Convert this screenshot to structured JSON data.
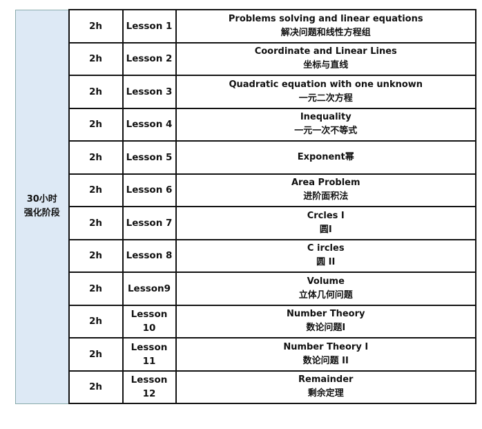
{
  "stage": {
    "line1": "30小时",
    "line2": "强化阶段",
    "color": "#dde9f5"
  },
  "rows": [
    {
      "hours": "2h",
      "lesson": "Lesson 1",
      "en": "Problems solving and linear equations",
      "zh": "解决问题和线性方程组"
    },
    {
      "hours": "2h",
      "lesson": "Lesson 2",
      "en": "Coordinate and Linear Lines",
      "zh": "坐标与直线"
    },
    {
      "hours": "2h",
      "lesson": "Lesson 3",
      "en": "Quadratic equation with one unknown",
      "zh": "一元二次方程"
    },
    {
      "hours": "2h",
      "lesson": "Lesson 4",
      "en": "Inequality",
      "zh": "一元一次不等式"
    },
    {
      "hours": "2h",
      "lesson": "Lesson 5",
      "en": "Exponent幂",
      "zh": ""
    },
    {
      "hours": "2h",
      "lesson": "Lesson 6",
      "en": "Area Problem",
      "zh": "进阶面积法"
    },
    {
      "hours": "2h",
      "lesson": "Lesson 7",
      "en": "Crcles I",
      "zh": "圆I"
    },
    {
      "hours": "2h",
      "lesson": "Lesson 8",
      "en": "C ircles",
      "zh": "圆  II"
    },
    {
      "hours": "2h",
      "lesson": "Lesson9",
      "en": "Volume",
      "zh": "立体几何问题"
    },
    {
      "hours": "2h",
      "lesson": "Lesson 10",
      "en": "Number Theory",
      "zh": "数论问题I"
    },
    {
      "hours": "2h",
      "lesson": "Lesson 11",
      "en": "Number Theory I",
      "zh": "数论问题 II"
    },
    {
      "hours": "2h",
      "lesson": "Lesson 12",
      "en": "Remainder",
      "zh": "剩余定理"
    }
  ]
}
